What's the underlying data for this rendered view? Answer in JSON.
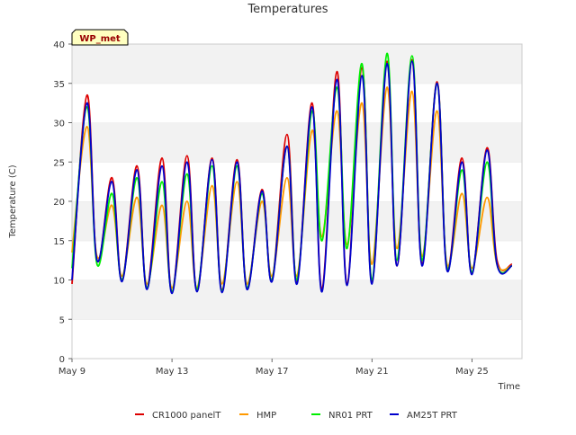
{
  "chart_data": {
    "type": "line",
    "title": "Temperatures",
    "xlabel": "Time",
    "ylabel": "Temperature (C)",
    "site_label": "WP_met",
    "x_ticks": [
      "May 9",
      "May 13",
      "May 17",
      "May 21",
      "May 25"
    ],
    "y_ticks": [
      0,
      5,
      10,
      15,
      20,
      25,
      30,
      35,
      40
    ],
    "ylim": [
      0,
      40
    ],
    "xlim_days": [
      9,
      27
    ],
    "grid": "horizontal bands",
    "legend": "bottom",
    "x_days": [
      9.0,
      9.6,
      10.0,
      10.6,
      11.0,
      11.6,
      12.0,
      12.6,
      13.0,
      13.6,
      14.0,
      14.6,
      15.0,
      15.6,
      16.0,
      16.6,
      17.0,
      17.6,
      18.0,
      18.6,
      19.0,
      19.6,
      20.0,
      20.6,
      21.0,
      21.6,
      22.0,
      22.6,
      23.0,
      23.6,
      24.0,
      24.6,
      25.0,
      25.6,
      26.0,
      26.6
    ],
    "series": [
      {
        "name": "CR1000 panelT",
        "color": "#dd0000",
        "values": [
          9.5,
          33.5,
          12.5,
          23.0,
          10.0,
          24.5,
          9.0,
          25.5,
          8.5,
          25.8,
          8.6,
          25.5,
          8.8,
          25.3,
          9.0,
          21.5,
          10.0,
          28.5,
          9.8,
          32.5,
          8.8,
          36.5,
          9.5,
          37.0,
          9.8,
          37.8,
          11.8,
          38.0,
          12.0,
          35.2,
          11.5,
          25.5,
          10.8,
          26.8,
          12.5,
          12.0
        ]
      },
      {
        "name": "HMP",
        "color": "#ff9900",
        "values": [
          13.5,
          29.5,
          13.0,
          19.5,
          10.5,
          20.5,
          9.5,
          19.5,
          9.0,
          20.0,
          9.0,
          22.0,
          9.5,
          22.5,
          9.5,
          20.0,
          10.5,
          23.0,
          10.5,
          29.0,
          15.5,
          31.5,
          14.5,
          32.5,
          12.0,
          34.5,
          14.0,
          34.0,
          13.0,
          31.5,
          12.0,
          21.0,
          11.5,
          20.5,
          12.0,
          11.8
        ]
      },
      {
        "name": "NR01 PRT",
        "color": "#00ee00",
        "values": [
          11.5,
          32.0,
          12.0,
          21.0,
          10.0,
          23.0,
          9.0,
          22.5,
          8.5,
          23.5,
          8.8,
          24.5,
          8.7,
          24.5,
          9.0,
          21.0,
          10.0,
          27.0,
          10.0,
          31.5,
          15.0,
          34.5,
          14.0,
          37.5,
          10.0,
          38.8,
          12.5,
          38.5,
          12.5,
          35.0,
          11.5,
          24.0,
          11.0,
          25.0,
          12.0,
          11.8
        ]
      },
      {
        "name": "AM25T PRT",
        "color": "#0000cc",
        "values": [
          10.0,
          32.5,
          12.5,
          22.5,
          9.8,
          24.0,
          8.8,
          24.5,
          8.3,
          25.0,
          8.5,
          25.3,
          8.4,
          25.0,
          8.8,
          21.3,
          9.8,
          27.0,
          9.5,
          32.0,
          8.5,
          35.5,
          9.3,
          36.0,
          9.5,
          37.5,
          11.8,
          37.8,
          11.8,
          35.0,
          11.2,
          25.0,
          10.7,
          26.5,
          12.0,
          11.8
        ]
      }
    ]
  }
}
